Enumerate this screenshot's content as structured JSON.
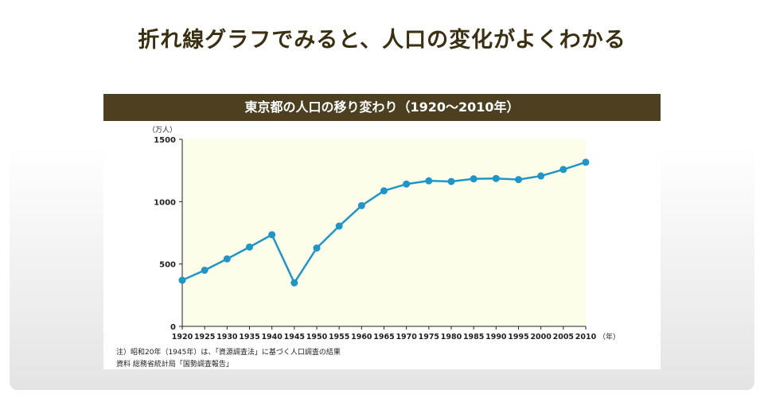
{
  "page": {
    "title": "折れ線グラフでみると、人口の変化がよくわかる"
  },
  "notes": {
    "note1": "注）昭和20年（1945年）は、「資源調査法」に基づく人口調査の結果",
    "source": "資料 総務省統計局「国勢調査報告」"
  },
  "colors": {
    "header_bg": "#4c4020",
    "plot_bg": "#fdfde9",
    "line": "#1e96c8"
  },
  "chart_data": {
    "type": "line",
    "title": "東京都の人口の移り変わり（1920〜2010年）",
    "ylabel": "（万人）",
    "xlabel": "（年）",
    "ylim": [
      0,
      1500
    ],
    "yticks": [
      0,
      500,
      1000,
      1500
    ],
    "x": [
      "1920",
      "1925",
      "1930",
      "1935",
      "1940",
      "1945",
      "1950",
      "1955",
      "1960",
      "1965",
      "1970",
      "1975",
      "1980",
      "1985",
      "1990",
      "1995",
      "2000",
      "2005",
      "2010"
    ],
    "series": [
      {
        "name": "東京都の人口",
        "values": [
          370,
          450,
          541,
          636,
          735,
          349,
          628,
          804,
          968,
          1087,
          1141,
          1167,
          1162,
          1183,
          1186,
          1177,
          1206,
          1258,
          1316
        ]
      }
    ]
  }
}
